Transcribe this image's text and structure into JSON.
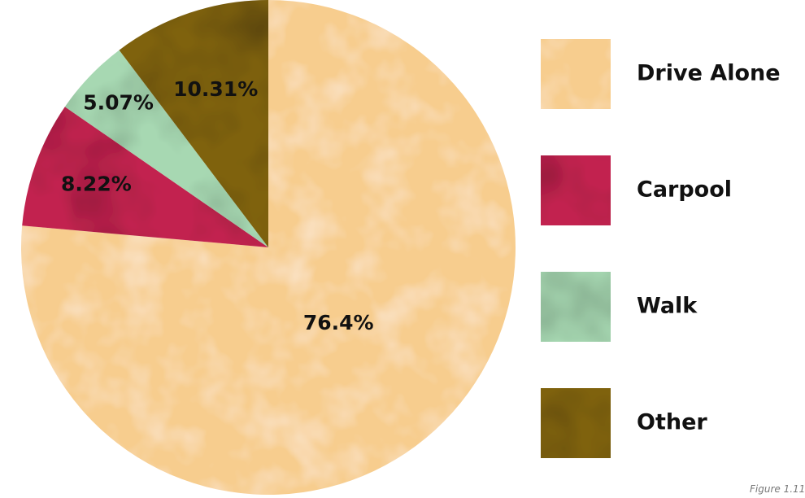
{
  "chart_data": {
    "type": "pie",
    "title": "",
    "categories": [
      "Drive Alone",
      "Carpool",
      "Walk",
      "Other"
    ],
    "values": [
      76.4,
      8.22,
      5.07,
      10.31
    ],
    "value_labels": [
      "76.4%",
      "8.22%",
      "5.07%",
      "10.31%"
    ],
    "colors": [
      "#f7cd8e",
      "#c2234f",
      "#a7d8b2",
      "#7f6210"
    ],
    "start_angle_deg": 0,
    "direction": "clockwise",
    "legend_position": "right"
  },
  "caption": "Figure 1.11"
}
